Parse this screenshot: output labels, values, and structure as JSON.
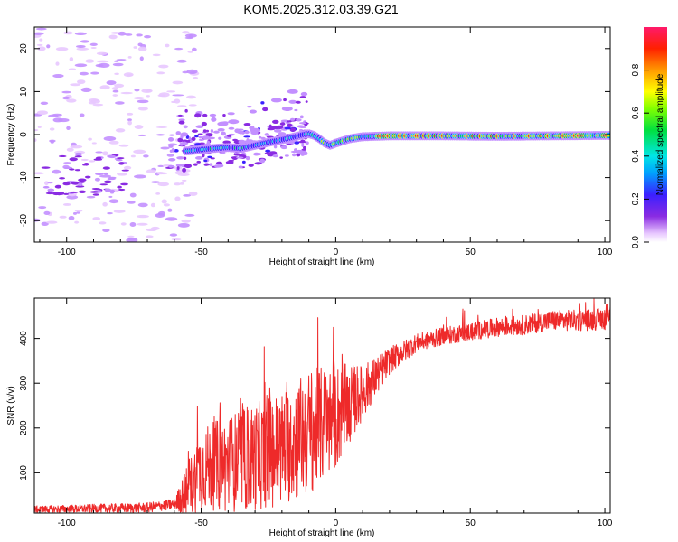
{
  "title": "KOM5.2025.312.03.39.G21",
  "colors": {
    "snr_line": "#ee2a2a",
    "frame": "#000000",
    "ridge": "#7b12f0"
  },
  "chart_data": [
    {
      "type": "heatmap",
      "title": "KOM5.2025.312.03.39.G21",
      "xlabel": "Height of straight line (km)",
      "ylabel": "Frequency (Hz)",
      "xlim": [
        -112,
        102
      ],
      "ylim": [
        -25,
        25
      ],
      "xticks": [
        -100,
        -50,
        0,
        50,
        100
      ],
      "yticks": [
        -20,
        -10,
        0,
        10,
        20
      ],
      "ridge_x": [
        -55,
        -50,
        -45,
        -40,
        -35,
        -30,
        -25,
        -20,
        -15,
        -12,
        -10,
        -8,
        -6,
        -4,
        -2,
        0,
        5,
        10,
        20,
        40,
        60,
        80,
        100
      ],
      "ridge_freq": [
        -3.8,
        -3.5,
        -3.2,
        -3,
        -3.2,
        -2.5,
        -1.8,
        -1.2,
        -0.5,
        0,
        0.2,
        -0.2,
        -1,
        -2,
        -2.5,
        -2,
        -1,
        -0.5,
        -0.3,
        -0.3,
        -0.4,
        -0.3,
        -0.2
      ],
      "colorbar": {
        "label": "Normalized spectral amplitude",
        "ticks": [
          "0.0",
          "0.2",
          "0.4",
          "0.6",
          "0.8"
        ],
        "tick_values": [
          0,
          0.2,
          0.4,
          0.6,
          0.8
        ],
        "range": [
          0,
          1
        ]
      }
    },
    {
      "type": "line",
      "xlabel": "Height of straight line (km)",
      "ylabel": "SNR (v/v)",
      "xlim": [
        -112,
        102
      ],
      "ylim": [
        10,
        490
      ],
      "xticks": [
        -100,
        -50,
        0,
        50,
        100
      ],
      "yticks": [
        100,
        200,
        300,
        400
      ],
      "trend_x": [
        -112,
        -90,
        -70,
        -60,
        -55,
        -50,
        -40,
        -30,
        -20,
        -10,
        0,
        10,
        20,
        30,
        40,
        50,
        60,
        70,
        80,
        90,
        102
      ],
      "trend_snr": [
        18,
        20,
        22,
        30,
        60,
        110,
        120,
        135,
        155,
        190,
        225,
        280,
        350,
        390,
        405,
        415,
        425,
        430,
        440,
        440,
        445
      ],
      "spread_x": [
        -112,
        -60,
        -55,
        -50,
        -40,
        -30,
        -20,
        -10,
        0,
        10,
        20,
        30,
        50,
        102
      ],
      "spread_snr": [
        8,
        12,
        60,
        90,
        110,
        120,
        130,
        140,
        120,
        60,
        30,
        20,
        20,
        25
      ]
    }
  ]
}
